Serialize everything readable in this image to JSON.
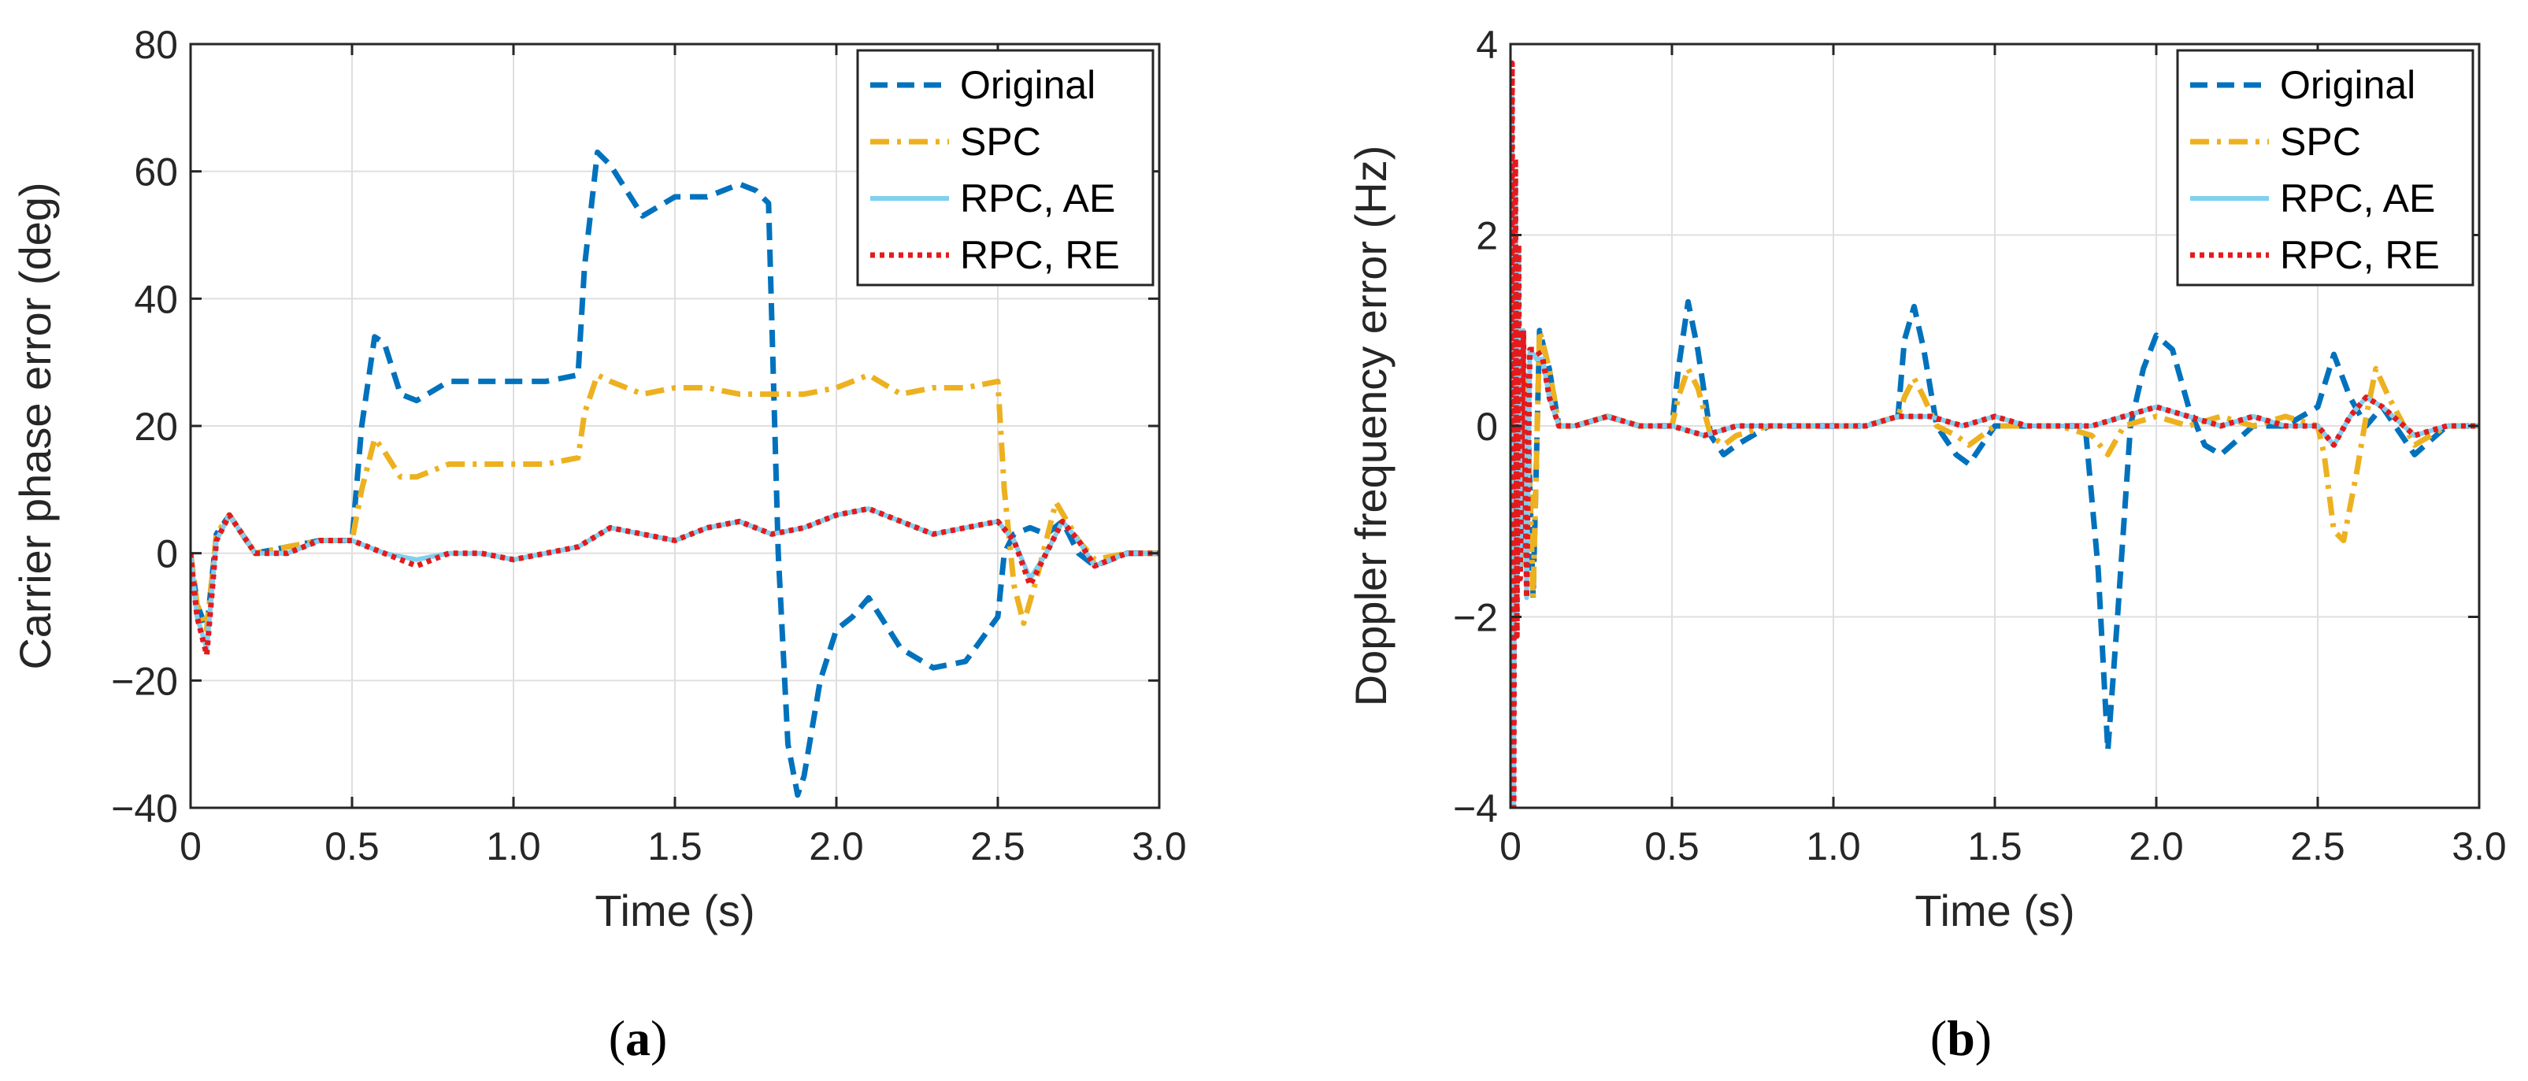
{
  "chart_data": [
    {
      "id": "a",
      "type": "line",
      "caption_open": "(",
      "caption_letter": "a",
      "caption_close": ")",
      "xlabel": "Time (s)",
      "ylabel": "Carrier phase error (deg)",
      "xlim": [
        0,
        3
      ],
      "ylim": [
        -40,
        80
      ],
      "xticks": [
        0,
        0.5,
        1.0,
        1.5,
        2.0,
        2.5,
        3.0
      ],
      "xtick_labels": [
        "0",
        "0.5",
        "1.0",
        "1.5",
        "2.0",
        "2.5",
        "3.0"
      ],
      "yticks": [
        -40,
        -20,
        0,
        20,
        40,
        60,
        80
      ],
      "ytick_labels": [
        "−40",
        "−20",
        "0",
        "20",
        "40",
        "60",
        "80"
      ],
      "grid": true,
      "legend_position": "top-right",
      "series": [
        {
          "name": "Original",
          "color": "#0072BD",
          "style": "dashed",
          "x": [
            0,
            0.02,
            0.05,
            0.08,
            0.12,
            0.2,
            0.3,
            0.4,
            0.5,
            0.53,
            0.57,
            0.6,
            0.65,
            0.7,
            0.8,
            0.9,
            1.0,
            1.1,
            1.2,
            1.22,
            1.26,
            1.3,
            1.35,
            1.4,
            1.5,
            1.6,
            1.7,
            1.75,
            1.79,
            1.82,
            1.85,
            1.88,
            1.9,
            1.95,
            2.0,
            2.05,
            2.1,
            2.2,
            2.3,
            2.4,
            2.5,
            2.52,
            2.55,
            2.6,
            2.65,
            2.7,
            2.75,
            2.8,
            2.9,
            3.0
          ],
          "y": [
            0,
            -8,
            -12,
            3,
            6,
            0,
            1,
            2,
            2,
            20,
            34,
            33,
            25,
            24,
            27,
            27,
            27,
            27,
            28,
            45,
            63,
            61,
            57,
            53,
            56,
            56,
            58,
            57,
            55,
            0,
            -30,
            -38,
            -35,
            -20,
            -12,
            -10,
            -7,
            -15,
            -18,
            -17,
            -10,
            0,
            3,
            4,
            3,
            5,
            0,
            -2,
            0,
            0
          ]
        },
        {
          "name": "SPC",
          "color": "#EDB120",
          "style": "dashdot",
          "x": [
            0,
            0.02,
            0.05,
            0.08,
            0.12,
            0.2,
            0.3,
            0.4,
            0.5,
            0.53,
            0.57,
            0.6,
            0.65,
            0.7,
            0.8,
            0.9,
            1.0,
            1.1,
            1.2,
            1.22,
            1.26,
            1.3,
            1.4,
            1.5,
            1.6,
            1.7,
            1.8,
            1.9,
            2.0,
            2.1,
            2.2,
            2.3,
            2.4,
            2.5,
            2.52,
            2.55,
            2.58,
            2.62,
            2.68,
            2.75,
            2.8,
            2.9,
            3.0
          ],
          "y": [
            0,
            -8,
            -12,
            3,
            6,
            0,
            1,
            2,
            2,
            10,
            18,
            16,
            12,
            12,
            14,
            14,
            14,
            14,
            15,
            22,
            28,
            27,
            25,
            26,
            26,
            25,
            25,
            25,
            26,
            28,
            25,
            26,
            26,
            27,
            10,
            -5,
            -11,
            -4,
            8,
            2,
            -1,
            0,
            0
          ]
        },
        {
          "name": "RPC, AE",
          "color": "#80D0F0",
          "style": "solid",
          "x": [
            0,
            0.02,
            0.05,
            0.08,
            0.12,
            0.2,
            0.3,
            0.4,
            0.5,
            0.6,
            0.7,
            0.8,
            0.9,
            1.0,
            1.1,
            1.2,
            1.3,
            1.4,
            1.5,
            1.6,
            1.7,
            1.8,
            1.9,
            2.0,
            2.1,
            2.2,
            2.3,
            2.4,
            2.5,
            2.55,
            2.6,
            2.65,
            2.7,
            2.75,
            2.8,
            2.9,
            3.0
          ],
          "y": [
            0,
            -10,
            -15,
            2,
            6,
            0,
            0,
            2,
            2,
            0,
            -1,
            0,
            0,
            -1,
            0,
            1,
            4,
            3,
            2,
            4,
            5,
            3,
            4,
            6,
            7,
            5,
            3,
            4,
            5,
            2,
            -4,
            0,
            5,
            2,
            -2,
            0,
            0
          ]
        },
        {
          "name": "RPC, RE",
          "color": "#E41A1C",
          "style": "dotted",
          "x": [
            0,
            0.02,
            0.05,
            0.08,
            0.12,
            0.2,
            0.3,
            0.4,
            0.5,
            0.6,
            0.7,
            0.8,
            0.9,
            1.0,
            1.1,
            1.2,
            1.3,
            1.4,
            1.5,
            1.6,
            1.7,
            1.8,
            1.9,
            2.0,
            2.1,
            2.2,
            2.3,
            2.4,
            2.5,
            2.55,
            2.6,
            2.65,
            2.7,
            2.75,
            2.8,
            2.9,
            3.0
          ],
          "y": [
            0,
            -10,
            -16,
            2,
            6,
            0,
            0,
            2,
            2,
            0,
            -2,
            0,
            0,
            -1,
            0,
            1,
            4,
            3,
            2,
            4,
            5,
            3,
            4,
            6,
            7,
            5,
            3,
            4,
            5,
            2,
            -5,
            0,
            5,
            2,
            -2,
            0,
            0
          ]
        }
      ]
    },
    {
      "id": "b",
      "type": "line",
      "caption_open": "(",
      "caption_letter": "b",
      "caption_close": ")",
      "xlabel": "Time (s)",
      "ylabel": "Doppler frequency error (Hz)",
      "xlim": [
        0,
        3
      ],
      "ylim": [
        -4,
        4
      ],
      "xticks": [
        0,
        0.5,
        1.0,
        1.5,
        2.0,
        2.5,
        3.0
      ],
      "xtick_labels": [
        "0",
        "0.5",
        "1.0",
        "1.5",
        "2.0",
        "2.5",
        "3.0"
      ],
      "yticks": [
        -4,
        -2,
        0,
        2,
        4
      ],
      "ytick_labels": [
        "−4",
        "−2",
        "0",
        "2",
        "4"
      ],
      "grid": true,
      "legend_position": "top-right",
      "series": [
        {
          "name": "Original",
          "color": "#0072BD",
          "style": "dashed",
          "x": [
            0,
            0.01,
            0.02,
            0.03,
            0.05,
            0.07,
            0.09,
            0.12,
            0.15,
            0.2,
            0.3,
            0.4,
            0.5,
            0.52,
            0.55,
            0.58,
            0.62,
            0.66,
            0.7,
            0.8,
            0.9,
            1.0,
            1.1,
            1.2,
            1.22,
            1.25,
            1.28,
            1.32,
            1.38,
            1.42,
            1.5,
            1.6,
            1.7,
            1.78,
            1.82,
            1.85,
            1.88,
            1.92,
            1.96,
            2.0,
            2.05,
            2.1,
            2.15,
            2.2,
            2.3,
            2.4,
            2.5,
            2.55,
            2.6,
            2.65,
            2.7,
            2.8,
            2.9,
            3.0
          ],
          "y": [
            0,
            -2.5,
            1.0,
            -1.5,
            0.5,
            -1.8,
            1.0,
            0.6,
            0.0,
            0.0,
            0.1,
            0.0,
            0.0,
            0.6,
            1.3,
            0.8,
            -0.1,
            -0.3,
            -0.2,
            0.0,
            0.0,
            0.0,
            0.0,
            0.1,
            0.9,
            1.25,
            0.8,
            0.0,
            -0.3,
            -0.4,
            0.0,
            0.0,
            0.0,
            0.0,
            -1.5,
            -3.4,
            -2.0,
            0.0,
            0.6,
            0.95,
            0.8,
            0.2,
            -0.2,
            -0.3,
            0.0,
            0.0,
            0.2,
            0.75,
            0.3,
            0.0,
            0.2,
            -0.3,
            0.0,
            0.0
          ]
        },
        {
          "name": "SPC",
          "color": "#EDB120",
          "style": "dashdot",
          "x": [
            0,
            0.01,
            0.02,
            0.03,
            0.05,
            0.07,
            0.09,
            0.12,
            0.15,
            0.2,
            0.3,
            0.4,
            0.5,
            0.52,
            0.55,
            0.58,
            0.62,
            0.66,
            0.7,
            0.8,
            0.9,
            1.0,
            1.1,
            1.2,
            1.22,
            1.25,
            1.28,
            1.32,
            1.38,
            1.42,
            1.5,
            1.6,
            1.7,
            1.8,
            1.85,
            1.9,
            2.0,
            2.1,
            2.2,
            2.3,
            2.4,
            2.5,
            2.52,
            2.55,
            2.58,
            2.62,
            2.65,
            2.68,
            2.72,
            2.8,
            2.9,
            3.0
          ],
          "y": [
            0,
            -2.5,
            1.0,
            -1.5,
            0.5,
            -1.8,
            1.0,
            0.6,
            0.0,
            0.0,
            0.1,
            0.0,
            0.0,
            0.3,
            0.6,
            0.4,
            -0.1,
            -0.2,
            -0.1,
            0.0,
            0.0,
            0.0,
            0.0,
            0.1,
            0.3,
            0.5,
            0.3,
            0.0,
            -0.1,
            -0.2,
            0.0,
            0.0,
            0.0,
            -0.1,
            -0.3,
            0.0,
            0.1,
            0.0,
            0.1,
            0.0,
            0.1,
            0.0,
            -0.3,
            -1.1,
            -1.2,
            -0.5,
            0.1,
            0.6,
            0.3,
            -0.2,
            0.0,
            0.0
          ]
        },
        {
          "name": "RPC, AE",
          "color": "#80D0F0",
          "style": "solid",
          "x": [
            0,
            0.005,
            0.01,
            0.015,
            0.02,
            0.025,
            0.03,
            0.04,
            0.05,
            0.06,
            0.08,
            0.1,
            0.12,
            0.15,
            0.2,
            0.3,
            0.4,
            0.5,
            0.6,
            0.7,
            0.8,
            0.9,
            1.0,
            1.1,
            1.2,
            1.3,
            1.4,
            1.5,
            1.6,
            1.7,
            1.8,
            1.9,
            2.0,
            2.1,
            2.2,
            2.3,
            2.4,
            2.5,
            2.55,
            2.6,
            2.65,
            2.7,
            2.8,
            2.9,
            3.0
          ],
          "y": [
            0,
            3.5,
            -4.0,
            2.5,
            -2.0,
            1.8,
            -1.5,
            1.0,
            -1.8,
            0.8,
            0.7,
            0.7,
            0.3,
            0.0,
            0.0,
            0.1,
            0.0,
            0.0,
            -0.1,
            0.0,
            0.0,
            0.0,
            0.0,
            0.0,
            0.1,
            0.1,
            0.0,
            0.1,
            0.0,
            0.0,
            0.0,
            0.1,
            0.2,
            0.1,
            0.0,
            0.1,
            0.0,
            0.0,
            -0.2,
            0.1,
            0.3,
            0.2,
            -0.1,
            0.0,
            0.0
          ]
        },
        {
          "name": "RPC, RE",
          "color": "#E41A1C",
          "style": "dotted",
          "x": [
            0,
            0.005,
            0.01,
            0.015,
            0.02,
            0.025,
            0.03,
            0.04,
            0.05,
            0.06,
            0.08,
            0.1,
            0.12,
            0.15,
            0.2,
            0.3,
            0.4,
            0.5,
            0.6,
            0.7,
            0.8,
            0.9,
            1.0,
            1.1,
            1.2,
            1.3,
            1.4,
            1.5,
            1.6,
            1.7,
            1.8,
            1.9,
            2.0,
            2.1,
            2.2,
            2.3,
            2.4,
            2.5,
            2.55,
            2.6,
            2.65,
            2.7,
            2.8,
            2.9,
            3.0
          ],
          "y": [
            0,
            3.8,
            -4.0,
            2.8,
            -2.2,
            1.9,
            -1.6,
            1.0,
            -1.8,
            0.8,
            0.8,
            0.7,
            0.3,
            0.0,
            0.0,
            0.1,
            0.0,
            0.0,
            -0.1,
            0.0,
            0.0,
            0.0,
            0.0,
            0.0,
            0.1,
            0.1,
            0.0,
            0.1,
            0.0,
            0.0,
            0.0,
            0.1,
            0.2,
            0.1,
            0.0,
            0.1,
            0.0,
            0.0,
            -0.2,
            0.1,
            0.3,
            0.2,
            -0.1,
            0.0,
            0.0
          ]
        }
      ]
    }
  ]
}
